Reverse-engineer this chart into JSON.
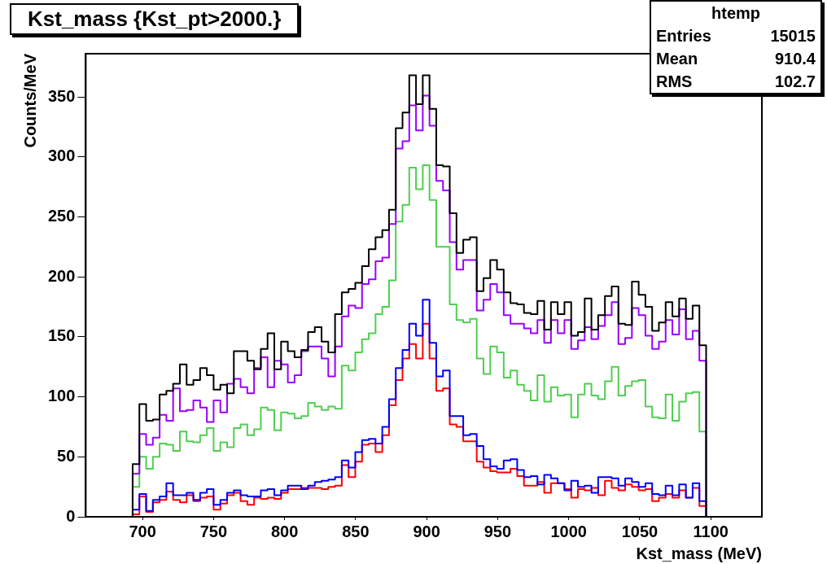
{
  "chart_data": {
    "type": "histogram",
    "title": "Kst_mass {Kst_pt>2000.}",
    "xlabel": "Kst_mass (MeV)",
    "ylabel": "Counts/MeV",
    "annotations": [
      "htemp",
      "Entries 15015",
      "Mean 910.4",
      "RMS 102.7"
    ],
    "bins": [
      693,
      697.75,
      702.5,
      707.25,
      712,
      716.75,
      721.5,
      726.25,
      731,
      735.75,
      740.5,
      745.25,
      750,
      754.75,
      759.5,
      764.25,
      769,
      773.75,
      778.5,
      783.25,
      788,
      792.75,
      797.5,
      802.25,
      807,
      811.75,
      816.5,
      821.25,
      826,
      830.75,
      835.5,
      840.25,
      845,
      849.75,
      854.5,
      859.25,
      864,
      868.75,
      873.5,
      878.25,
      883,
      887.75,
      892.5,
      897.25,
      902,
      906.75,
      911.5,
      916.25,
      921,
      925.75,
      930.5,
      935.25,
      940,
      944.75,
      949.5,
      954.25,
      959,
      963.75,
      968.5,
      973.25,
      978,
      982.75,
      987.5,
      992.25,
      997,
      1001.75,
      1006.5,
      1011.25,
      1016,
      1020.75,
      1025.5,
      1030.25,
      1035,
      1039.75,
      1044.5,
      1049.25,
      1054,
      1058.75,
      1063.5,
      1068.25,
      1073,
      1077.75,
      1082.5,
      1087.25,
      1092,
      1096.75
    ],
    "series": [
      {
        "color": "#000000",
        "values": [
          44,
          94,
          80,
          81,
          102,
          105,
          111,
          127,
          110,
          114,
          124,
          118,
          106,
          110,
          103,
          138,
          138,
          130,
          123,
          140,
          153,
          123,
          146,
          138,
          133,
          139,
          154,
          158,
          146,
          137,
          169,
          187,
          190,
          195,
          209,
          223,
          233,
          239,
          256,
          324,
          337,
          368,
          344,
          368,
          340,
          293,
          292,
          253,
          220,
          231,
          233,
          188,
          199,
          214,
          206,
          187,
          178,
          177,
          170,
          169,
          180,
          156,
          179,
          169,
          179,
          151,
          154,
          182,
          156,
          168,
          184,
          192,
          161,
          160,
          196,
          185,
          175,
          155,
          162,
          179,
          167,
          182,
          165,
          176,
          143
        ]
      },
      {
        "color": "#9b00ff",
        "values": [
          36,
          69,
          60,
          66,
          85,
          80,
          107,
          88,
          89,
          97,
          91,
          79,
          97,
          87,
          111,
          115,
          108,
          103,
          124,
          133,
          108,
          130,
          127,
          112,
          118,
          138,
          142,
          142,
          132,
          117,
          142,
          167,
          176,
          174,
          194,
          198,
          213,
          216,
          244,
          307,
          313,
          343,
          322,
          351,
          326,
          280,
          272,
          229,
          206,
          214,
          214,
          172,
          181,
          194,
          187,
          168,
          161,
          161,
          157,
          153,
          164,
          145,
          164,
          153,
          164,
          140,
          147,
          158,
          148,
          159,
          168,
          179,
          144,
          149,
          174,
          168,
          151,
          140,
          146,
          164,
          152,
          173,
          148,
          155,
          130
        ]
      },
      {
        "color": "#4fce4f",
        "values": [
          25,
          50,
          40,
          50,
          61,
          60,
          55,
          71,
          63,
          62,
          68,
          74,
          55,
          62,
          58,
          74,
          77,
          68,
          73,
          91,
          89,
          72,
          87,
          86,
          82,
          84,
          95,
          92,
          89,
          92,
          90,
          126,
          122,
          137,
          148,
          153,
          169,
          175,
          197,
          246,
          260,
          291,
          273,
          293,
          264,
          225,
          225,
          177,
          164,
          162,
          165,
          132,
          119,
          142,
          137,
          116,
          122,
          110,
          105,
          97,
          118,
          96,
          108,
          101,
          102,
          83,
          102,
          111,
          101,
          98,
          113,
          125,
          101,
          109,
          113,
          114,
          92,
          83,
          82,
          102,
          80,
          96,
          103,
          104,
          71
        ]
      },
      {
        "color": "#0000ff",
        "values": [
          6,
          19,
          5,
          14,
          17,
          28,
          18,
          18,
          20,
          14,
          20,
          23,
          10,
          14,
          20,
          22,
          18,
          17,
          17,
          22,
          23,
          18,
          22,
          26,
          26,
          23,
          26,
          29,
          30,
          31,
          33,
          47,
          41,
          54,
          64,
          65,
          61,
          75,
          98,
          124,
          139,
          161,
          151,
          181,
          145,
          117,
          122,
          84,
          84,
          68,
          69,
          59,
          48,
          42,
          40,
          47,
          48,
          39,
          33,
          34,
          27,
          35,
          32,
          28,
          22,
          30,
          25,
          26,
          20,
          33,
          33,
          32,
          26,
          32,
          29,
          25,
          28,
          19,
          18,
          26,
          18,
          27,
          16,
          28,
          13
        ]
      },
      {
        "color": "#ff0000",
        "values": [
          2,
          17,
          4,
          12,
          14,
          21,
          14,
          12,
          18,
          13,
          16,
          17,
          6,
          11,
          18,
          20,
          13,
          10,
          16,
          15,
          16,
          15,
          20,
          23,
          23,
          24,
          24,
          24,
          23,
          25,
          26,
          43,
          33,
          46,
          60,
          61,
          54,
          68,
          93,
          114,
          132,
          144,
          132,
          161,
          132,
          105,
          107,
          77,
          75,
          63,
          63,
          46,
          41,
          38,
          37,
          37,
          40,
          34,
          26,
          26,
          29,
          20,
          28,
          28,
          23,
          16,
          23,
          22,
          24,
          18,
          30,
          24,
          22,
          27,
          25,
          22,
          23,
          13,
          16,
          19,
          16,
          22,
          16,
          24,
          9
        ]
      }
    ],
    "xlim": [
      660,
      1136
    ],
    "ylim": [
      0,
      386
    ],
    "xticks": [
      700,
      750,
      800,
      850,
      900,
      950,
      1000,
      1050,
      1100
    ],
    "yticks": [
      0,
      50,
      100,
      150,
      200,
      250,
      300,
      350
    ],
    "grid": false,
    "legend": false
  }
}
